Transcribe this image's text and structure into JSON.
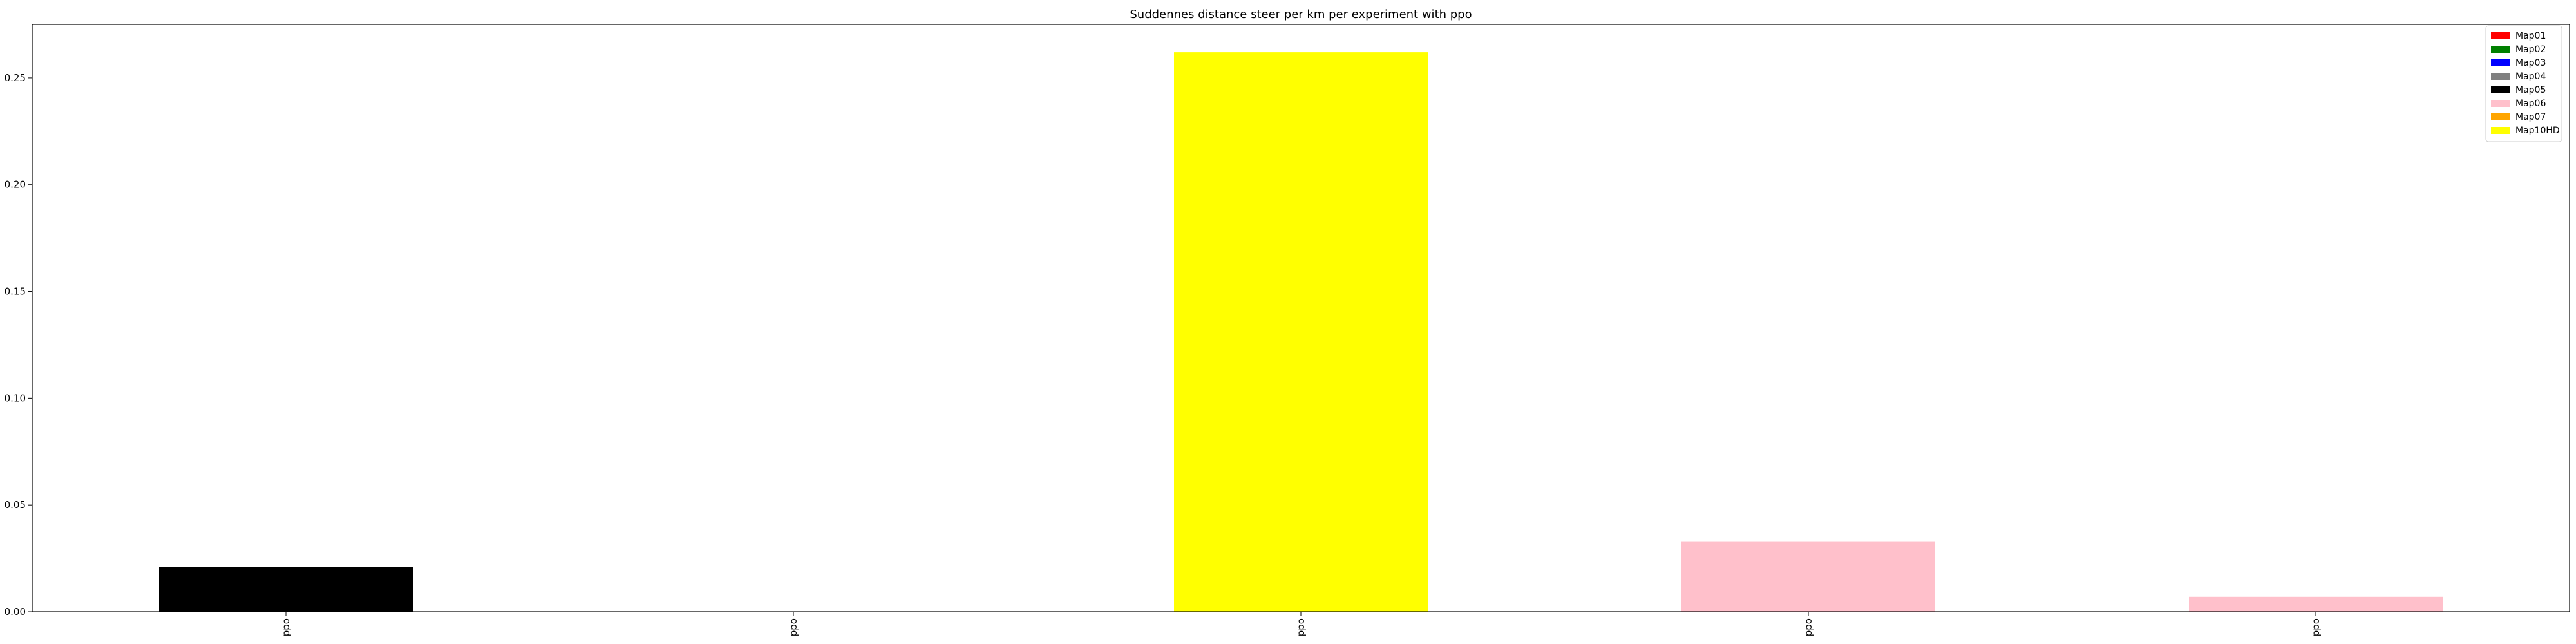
{
  "chart_data": {
    "type": "bar",
    "title": "Suddennes distance steer per km per experiment with ppo",
    "xlabel": "",
    "ylabel": "",
    "categories": [
      "ppo",
      "ppo",
      "ppo",
      "ppo",
      "ppo"
    ],
    "values": [
      0.021,
      0.0,
      0.262,
      0.033,
      0.007
    ],
    "bar_series": [
      "Map05",
      "Map02",
      "Map10HD",
      "Map06",
      "Map06"
    ],
    "ylim": [
      0,
      0.275
    ],
    "yticks": [
      0.0,
      0.05,
      0.1,
      0.15,
      0.2,
      0.25
    ],
    "ytick_labels": [
      "0.00",
      "0.05",
      "0.10",
      "0.15",
      "0.20",
      "0.25"
    ],
    "grid": false,
    "legend_position": "top-right",
    "legend": [
      {
        "label": "Map01",
        "color": "#ff0000"
      },
      {
        "label": "Map02",
        "color": "#008000"
      },
      {
        "label": "Map03",
        "color": "#0000ff"
      },
      {
        "label": "Map04",
        "color": "#808080"
      },
      {
        "label": "Map05",
        "color": "#000000"
      },
      {
        "label": "Map06",
        "color": "#ffc0cb"
      },
      {
        "label": "Map07",
        "color": "#ffa500"
      },
      {
        "label": "Map10HD",
        "color": "#ffff00"
      }
    ]
  }
}
